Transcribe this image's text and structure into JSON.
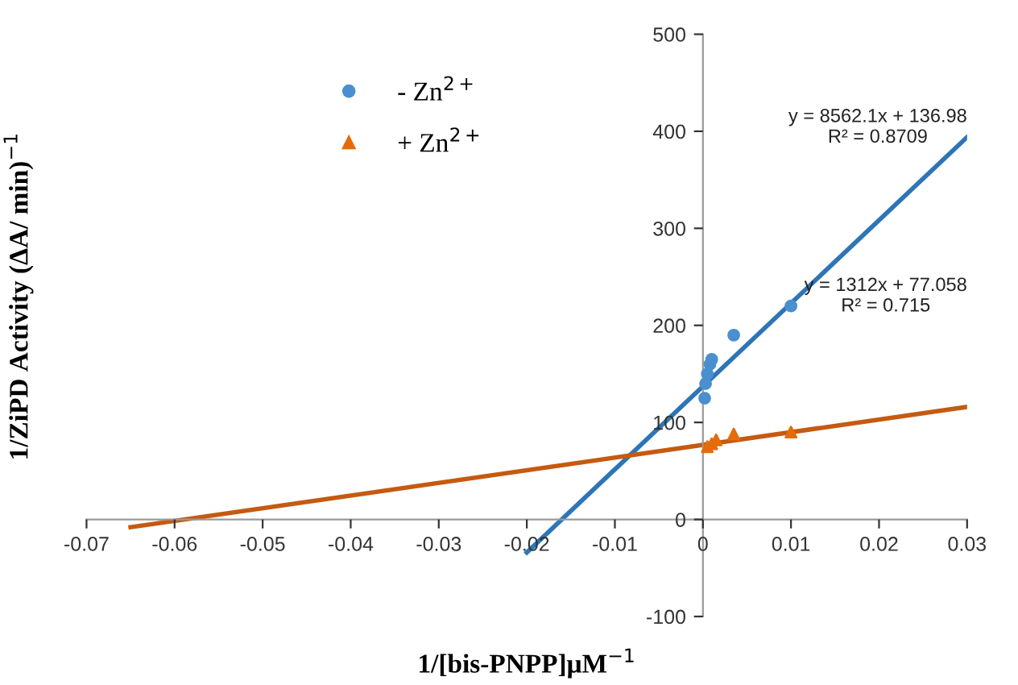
{
  "chart_data": {
    "type": "scatter",
    "xlabel": "1/[bis-PNPP]μM$^{−1}$",
    "ylabel": "1/ZiPD Activity (ΔA/ min)$^{−1}$",
    "xlim": [
      -0.07,
      0.03
    ],
    "xticks": [
      -0.07,
      -0.06,
      -0.05,
      -0.04,
      -0.03,
      -0.02,
      -0.01,
      0,
      0.01,
      0.02,
      0.03
    ],
    "ylim": [
      -100,
      500
    ],
    "yticks": [
      -100,
      0,
      100,
      200,
      300,
      400,
      500
    ],
    "grid": false,
    "legend": "top left",
    "series": [
      {
        "name": "- Zn$^{2+}$",
        "color": "#4a8fd0",
        "marker": "circle",
        "x": [
          0.0002,
          0.0003,
          0.0005,
          0.0008,
          0.001,
          0.0035,
          0.01
        ],
        "values": [
          125,
          140,
          150,
          160,
          165,
          190,
          220
        ]
      },
      {
        "name": "+ Zn$^{2+}$",
        "color": "#e46c0a",
        "marker": "triangle",
        "x": [
          0.0005,
          0.001,
          0.0015,
          0.0035,
          0.01
        ],
        "values": [
          75,
          78,
          82,
          88,
          90
        ]
      },
      {
        "type": "line",
        "color": "#2e75b6",
        "x": [
          -0.02,
          0.03
        ],
        "values": [
          -34,
          394
        ]
      },
      {
        "type": "line",
        "color": "#c55a11",
        "x": [
          -0.065,
          0.03
        ],
        "values": [
          -8,
          116
        ]
      }
    ],
    "annotations": [
      "y = 8562.1x + 136.98\nR² = 0.8709",
      "y = 1312x + 77.058\nR² = 0.715"
    ]
  }
}
